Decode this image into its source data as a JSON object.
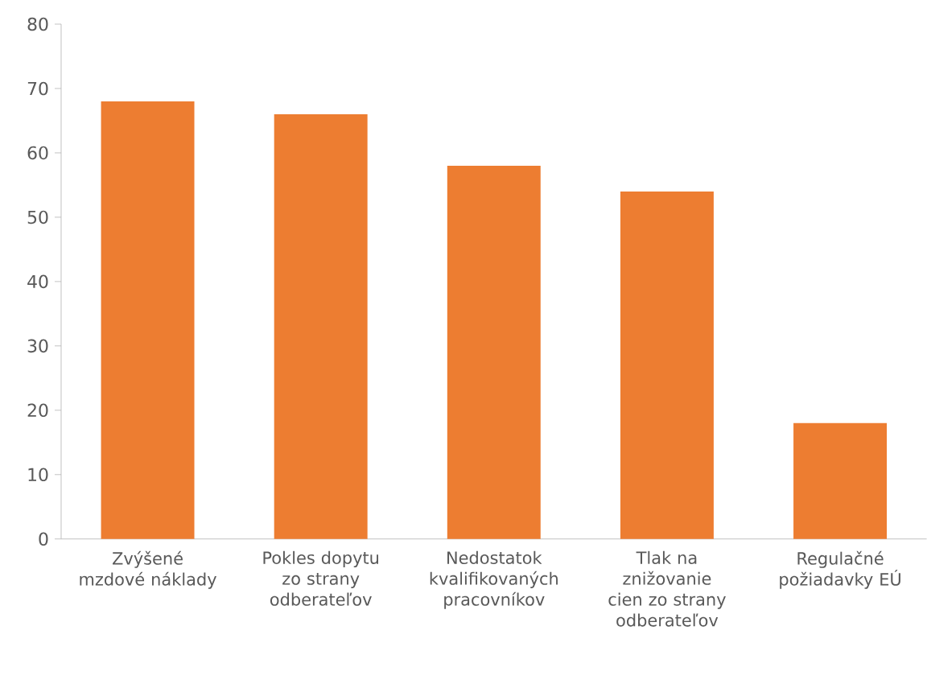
{
  "chart_data": {
    "type": "bar",
    "categories": [
      "Zvýšené mzdové náklady",
      "Pokles dopytu zo strany odberateľov",
      "Nedostatok kvalifikovaných pracovníkov",
      "Tlak na znižovanie cien zo strany odberateľov",
      "Regulačné požiadavky EÚ"
    ],
    "values": [
      68,
      66,
      58,
      54,
      18
    ],
    "color": "#ed7d31",
    "ylim": [
      0,
      80
    ],
    "yticks": [
      0,
      10,
      20,
      30,
      40,
      50,
      60,
      70,
      80
    ],
    "grid": false
  }
}
